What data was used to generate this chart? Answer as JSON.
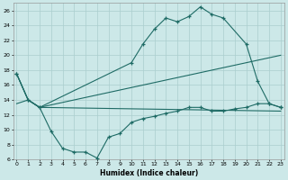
{
  "xlabel": "Humidex (Indice chaleur)",
  "bg_color": "#cce8e8",
  "line_color": "#1e6b65",
  "grid_color": "#aacece",
  "series": {
    "line1_upper": {
      "x": [
        0,
        1,
        2,
        10,
        11,
        12,
        13,
        14,
        15,
        16,
        17,
        18,
        20,
        21,
        22,
        23
      ],
      "y": [
        17.5,
        14.0,
        13.0,
        19.0,
        21.5,
        23.5,
        25.0,
        24.5,
        25.2,
        26.5,
        25.5,
        25.0,
        21.5,
        16.5,
        13.5,
        13.0
      ]
    },
    "line2_lower": {
      "x": [
        0,
        1,
        2,
        3,
        4,
        5,
        6,
        7,
        8,
        9,
        10,
        11,
        12,
        13,
        14,
        15,
        16,
        17,
        18,
        19,
        20,
        21,
        22,
        23
      ],
      "y": [
        17.5,
        14.0,
        13.0,
        9.8,
        7.5,
        7.0,
        7.0,
        6.2,
        9.0,
        9.5,
        11.0,
        11.5,
        11.8,
        12.2,
        12.5,
        13.0,
        13.0,
        12.5,
        12.5,
        12.8,
        13.0,
        13.5,
        13.5,
        13.0
      ]
    },
    "line3_ref1": {
      "x": [
        0,
        1,
        2,
        23
      ],
      "y": [
        13.5,
        14.0,
        13.0,
        20.0
      ]
    },
    "line4_ref2": {
      "x": [
        0,
        1,
        2,
        23
      ],
      "y": [
        17.5,
        14.0,
        13.0,
        12.5
      ]
    }
  },
  "xlim": [
    0,
    23
  ],
  "ylim": [
    6,
    27
  ],
  "yticks": [
    6,
    8,
    10,
    12,
    14,
    16,
    18,
    20,
    22,
    24,
    26
  ],
  "xticks": [
    0,
    1,
    2,
    3,
    4,
    5,
    6,
    7,
    8,
    9,
    10,
    11,
    12,
    13,
    14,
    15,
    16,
    17,
    18,
    19,
    20,
    21,
    22,
    23
  ]
}
